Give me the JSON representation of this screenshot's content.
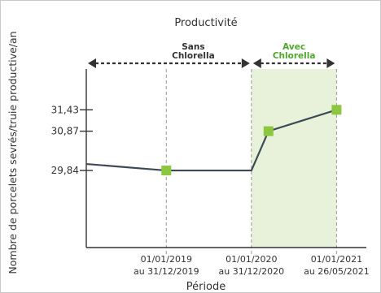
{
  "chart_data": {
    "type": "line",
    "title": "Productivité",
    "xlabel": "Période",
    "ylabel": "Nombre de porcelets sevrés/truie productive/an",
    "categories": [
      [
        "01/01/2019",
        "au 31/12/2019"
      ],
      [
        "01/01/2020",
        "au 31/12/2020"
      ],
      [
        "01/01/2021",
        "au 26/05/2021"
      ]
    ],
    "x_labels": [
      {
        "line1": "01/01/2019",
        "line2": "au 31/12/2019"
      },
      {
        "line1": "01/01/2020",
        "line2": "au 31/12/2020"
      },
      {
        "line1": "01/01/2021",
        "line2": "au 26/05/2021"
      }
    ],
    "y_ticks": [
      {
        "value": 29.84,
        "label": "29,84"
      },
      {
        "value": 30.87,
        "label": "30,87"
      },
      {
        "value": 31.43,
        "label": "31,43"
      }
    ],
    "series": [
      {
        "points": [
          {
            "x": 0.5,
            "y": 29.84,
            "marker": true
          },
          {
            "x": 1.5,
            "y": 29.84,
            "marker": false
          },
          {
            "x": 1.7,
            "y": 30.87,
            "marker": true
          },
          {
            "x": 2.5,
            "y": 31.43,
            "marker": true
          }
        ],
        "line_color": "#3c4a55",
        "marker_color": "#8dc63f"
      }
    ],
    "x_range": [
      -0.44,
      2.85
    ],
    "y_range": [
      27.82,
      32.5
    ],
    "regions": [
      {
        "label_line1": "Sans",
        "label_line2": "Chlorella",
        "x_start": -0.44,
        "x_end": 1.5,
        "shaded": false,
        "label_color": "#333333"
      },
      {
        "label_line1": "Avec",
        "label_line2": "Chlorella",
        "x_start": 1.5,
        "x_end": 2.5,
        "shaded": true,
        "label_color": "#4fa82e"
      }
    ],
    "colors": {
      "shade": "#e8f1d9",
      "axis": "#333333",
      "gridline": "#999999",
      "frame": "#c8c8c8"
    }
  }
}
